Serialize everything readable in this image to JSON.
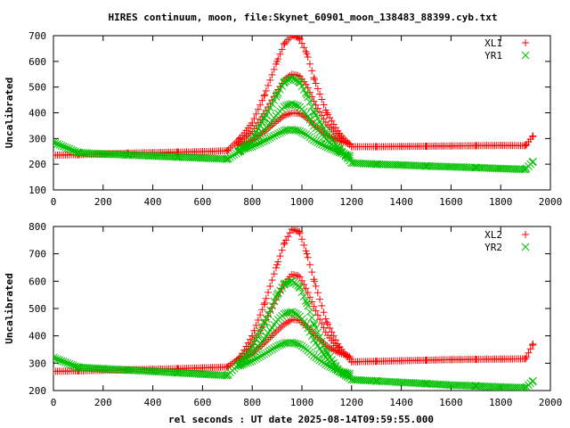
{
  "title": "HIRES continuum, moon, file:Skynet_60901_moon_138483_88399.cyb.txt",
  "xlabel": "rel seconds : UT date 2025-08-14T09:59:55.000",
  "colors": {
    "series1": "#ff0000",
    "series2": "#00c000",
    "axes": "#000000"
  },
  "chart_data": [
    {
      "type": "scatter",
      "ylabel": "Uncalibrated",
      "xlim": [
        0,
        2000
      ],
      "ylim": [
        100,
        700
      ],
      "xticks": [
        0,
        200,
        400,
        600,
        800,
        1000,
        1200,
        1400,
        1600,
        1800,
        2000
      ],
      "yticks": [
        100,
        200,
        300,
        400,
        500,
        600,
        700
      ],
      "legend_position": "top-right",
      "series": [
        {
          "name": "XL1",
          "marker": "plus",
          "color": "#ff0000",
          "x": [
            0,
            100,
            200,
            300,
            400,
            500,
            600,
            700,
            750,
            800,
            850,
            900,
            930,
            960,
            990,
            1020,
            1050,
            1100,
            1150,
            1200,
            1300,
            1400,
            1500,
            1600,
            1700,
            1800,
            1900,
            1930
          ],
          "y": [
            235,
            237,
            240,
            243,
            245,
            247,
            249,
            252,
            300,
            360,
            470,
            600,
            670,
            700,
            690,
            630,
            530,
            400,
            320,
            268,
            268,
            269,
            270,
            271,
            272,
            273,
            272,
            310
          ]
        },
        {
          "name": "YR1",
          "marker": "cross",
          "color": "#00c000",
          "x": [
            0,
            100,
            200,
            300,
            400,
            500,
            600,
            700,
            750,
            800,
            850,
            900,
            930,
            960,
            990,
            1020,
            1050,
            1100,
            1150,
            1200,
            1300,
            1400,
            1500,
            1600,
            1700,
            1800,
            1900,
            1930
          ],
          "y": [
            285,
            245,
            240,
            236,
            232,
            228,
            224,
            220,
            250,
            300,
            380,
            470,
            520,
            535,
            520,
            470,
            400,
            320,
            260,
            205,
            200,
            197,
            193,
            190,
            187,
            183,
            180,
            210
          ]
        }
      ]
    },
    {
      "type": "scatter",
      "ylabel": "Uncalibrated",
      "xlim": [
        0,
        2000
      ],
      "ylim": [
        200,
        800
      ],
      "xticks": [
        0,
        200,
        400,
        600,
        800,
        1000,
        1200,
        1400,
        1600,
        1800,
        2000
      ],
      "yticks": [
        200,
        300,
        400,
        500,
        600,
        700,
        800
      ],
      "legend_position": "top-right",
      "series": [
        {
          "name": "XL2",
          "marker": "plus",
          "color": "#ff0000",
          "x": [
            0,
            100,
            200,
            300,
            400,
            500,
            600,
            700,
            750,
            800,
            850,
            900,
            930,
            960,
            990,
            1020,
            1050,
            1100,
            1150,
            1200,
            1300,
            1400,
            1500,
            1600,
            1700,
            1800,
            1900,
            1930
          ],
          "y": [
            270,
            272,
            274,
            276,
            278,
            280,
            283,
            286,
            320,
            400,
            520,
            660,
            740,
            790,
            780,
            700,
            600,
            450,
            360,
            305,
            307,
            309,
            311,
            313,
            314,
            315,
            316,
            370
          ]
        },
        {
          "name": "YR2",
          "marker": "cross",
          "color": "#00c000",
          "x": [
            0,
            100,
            200,
            300,
            400,
            500,
            600,
            700,
            750,
            800,
            850,
            900,
            930,
            960,
            990,
            1020,
            1050,
            1100,
            1150,
            1200,
            1300,
            1400,
            1500,
            1600,
            1700,
            1800,
            1900,
            1930
          ],
          "y": [
            320,
            285,
            280,
            275,
            270,
            265,
            260,
            255,
            300,
            360,
            450,
            550,
            590,
            600,
            580,
            520,
            440,
            340,
            270,
            240,
            235,
            230,
            225,
            220,
            217,
            213,
            210,
            235
          ]
        }
      ]
    }
  ]
}
